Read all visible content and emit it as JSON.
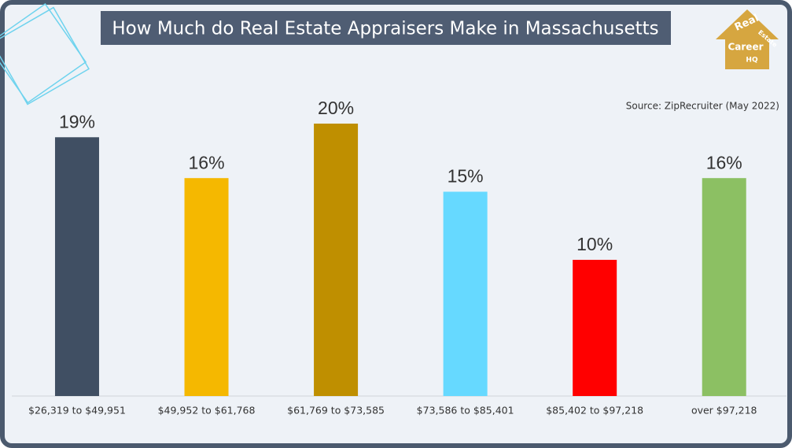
{
  "chart_data": {
    "type": "bar",
    "title": "How Much do Real Estate Appraisers Make in Massachusetts",
    "annotation": "Source: ZipRecruiter (May 2022)",
    "categories": [
      "$26,319 to $49,951",
      "$49,952 to $61,768",
      "$61,769 to $73,585",
      "$73,586 to $85,401",
      "$85,402 to $97,218",
      "over $97,218"
    ],
    "values": [
      19,
      16,
      20,
      15,
      10,
      16
    ],
    "value_labels": [
      "19%",
      "16%",
      "20%",
      "15%",
      "10%",
      "16%"
    ],
    "colors": [
      "#404f63",
      "#f5b800",
      "#bf8f00",
      "#66d9ff",
      "#ff0000",
      "#8cc063"
    ],
    "ylim": [
      0,
      20
    ]
  },
  "logo": {
    "lines": [
      "Real",
      "Estate",
      "Career",
      "HQ"
    ]
  }
}
